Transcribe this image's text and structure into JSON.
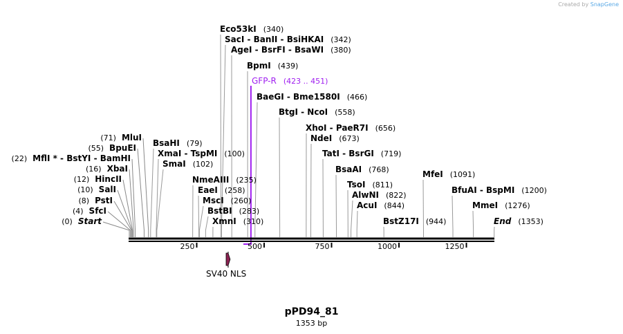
{
  "credit": {
    "prefix": "Created by",
    "brand": "SnapGene"
  },
  "map": {
    "title": "pPD94_81",
    "length_label": "1353 bp",
    "length_bp": 1353
  },
  "axis_ticks": [
    "250",
    "500",
    "750",
    "1000",
    "1250"
  ],
  "colors": {
    "primer": "#a020f0",
    "feature": "#8b2252",
    "backbone": "#000000"
  },
  "sites": [
    {
      "name": "Start",
      "pos": "(0)",
      "bp": 0,
      "italic": true
    },
    {
      "name": "SfcI",
      "pos": "(4)",
      "bp": 4
    },
    {
      "name": "PstI",
      "pos": "(8)",
      "bp": 8
    },
    {
      "name": "SalI",
      "pos": "(10)",
      "bp": 10
    },
    {
      "name": "HincII",
      "pos": "(12)",
      "bp": 12
    },
    {
      "name": "XbaI",
      "pos": "(16)",
      "bp": 16
    },
    {
      "name": "MflI * - BstYI - BamHI",
      "pos": "(22)",
      "bp": 22
    },
    {
      "name": "BpuEI",
      "pos": "(55)",
      "bp": 55
    },
    {
      "name": "MluI",
      "pos": "(71)",
      "bp": 71
    },
    {
      "name": "BsaHI",
      "pos": "(79)",
      "bp": 79
    },
    {
      "name": "XmaI - TspMI",
      "pos": "(100)",
      "bp": 100
    },
    {
      "name": "SmaI",
      "pos": "(102)",
      "bp": 102
    },
    {
      "name": "NmeAIII",
      "pos": "(235)",
      "bp": 235
    },
    {
      "name": "EaeI",
      "pos": "(258)",
      "bp": 258
    },
    {
      "name": "MscI",
      "pos": "(260)",
      "bp": 260
    },
    {
      "name": "BstBI",
      "pos": "(283)",
      "bp": 283
    },
    {
      "name": "XmnI",
      "pos": "(310)",
      "bp": 310
    },
    {
      "name": "Eco53kI",
      "pos": "(340)",
      "bp": 340
    },
    {
      "name": "SacI - BanII - BsiHKAI",
      "pos": "(342)",
      "bp": 342
    },
    {
      "name": "AgeI - BsrFI - BsaWI",
      "pos": "(380)",
      "bp": 380
    },
    {
      "name": "BpmI",
      "pos": "(439)",
      "bp": 439
    },
    {
      "name": "BaeGI - Bme1580I",
      "pos": "(466)",
      "bp": 466
    },
    {
      "name": "BtgI - NcoI",
      "pos": "(558)",
      "bp": 558
    },
    {
      "name": "XhoI - PaeR7I",
      "pos": "(656)",
      "bp": 656
    },
    {
      "name": "NdeI",
      "pos": "(673)",
      "bp": 673
    },
    {
      "name": "TatI - BsrGI",
      "pos": "(719)",
      "bp": 719
    },
    {
      "name": "BsaAI",
      "pos": "(768)",
      "bp": 768
    },
    {
      "name": "TsoI",
      "pos": "(811)",
      "bp": 811
    },
    {
      "name": "AlwNI",
      "pos": "(822)",
      "bp": 822
    },
    {
      "name": "AcuI",
      "pos": "(844)",
      "bp": 844
    },
    {
      "name": "BstZ17I",
      "pos": "(944)",
      "bp": 944
    },
    {
      "name": "MfeI",
      "pos": "(1091)",
      "bp": 1091
    },
    {
      "name": "BfuAI - BspMI",
      "pos": "(1200)",
      "bp": 1200
    },
    {
      "name": "MmeI",
      "pos": "(1276)",
      "bp": 1276
    },
    {
      "name": "End",
      "pos": "(1353)",
      "bp": 1353,
      "italic": true
    }
  ],
  "primer": {
    "name": "GFP-R",
    "pos": "(423 .. 451)",
    "start": 423,
    "end": 451,
    "direction": "reverse"
  },
  "feature": {
    "name": "SV40 NLS",
    "start": 359,
    "end": 374,
    "direction": "forward"
  }
}
